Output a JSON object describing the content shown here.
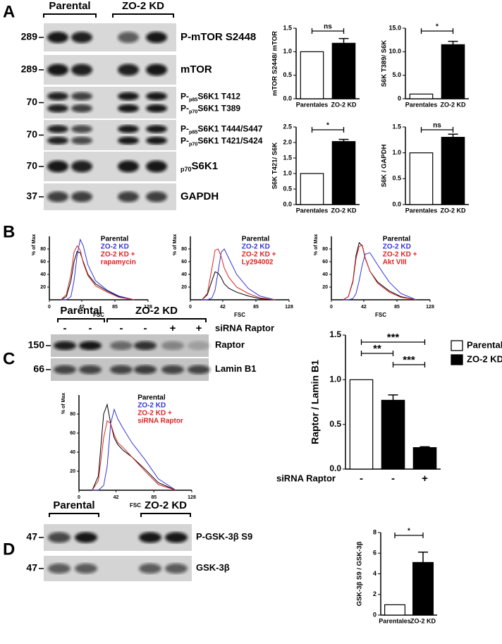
{
  "panels": {
    "a": {
      "letter": "A",
      "groups": [
        "Parental",
        "ZO-2 KD"
      ],
      "rows": [
        {
          "mw": "289",
          "lines": [
            [
              {
                "text": "P-mTOR S2448"
              }
            ]
          ]
        },
        {
          "mw": "289",
          "lines": [
            [
              {
                "text": "mTOR"
              }
            ]
          ]
        },
        {
          "mw": "70",
          "lines": [
            [
              {
                "text": "P-"
              },
              {
                "text": "p85",
                "sub": true
              },
              {
                "text": "S6K1 T412"
              }
            ],
            [
              {
                "text": "P-"
              },
              {
                "text": "p70",
                "sub": true
              },
              {
                "text": "S6K1 T389"
              }
            ]
          ]
        },
        {
          "mw": "70",
          "lines": [
            [
              {
                "text": "P-"
              },
              {
                "text": "p85",
                "sub": true
              },
              {
                "text": "S6K1 T444/S447"
              }
            ],
            [
              {
                "text": "P-"
              },
              {
                "text": "p70",
                "sub": true
              },
              {
                "text": "S6K1 T421/S424"
              }
            ]
          ]
        },
        {
          "mw": "70",
          "lines": [
            [
              {
                "text": "p70",
                "sub": true
              },
              {
                "text": "S6K1"
              }
            ]
          ]
        },
        {
          "mw": "37",
          "lines": [
            [
              {
                "text": "GAPDH"
              }
            ]
          ]
        }
      ]
    },
    "b": {
      "letter": "B"
    },
    "c": {
      "letter": "C",
      "groups": [
        "Parental",
        "ZO-2 KD"
      ],
      "treatment": "siRNA Raptor",
      "treatment_lanes": [
        "-",
        "-",
        "-",
        "-",
        "+",
        "+"
      ],
      "rows": [
        {
          "mw": "150",
          "lines": [
            [
              {
                "text": "Raptor"
              }
            ]
          ]
        },
        {
          "mw": "66",
          "lines": [
            [
              {
                "text": "Lamin B1"
              }
            ]
          ]
        }
      ]
    },
    "d": {
      "letter": "D",
      "groups": [
        "Parental",
        "ZO-2 KD"
      ],
      "rows": [
        {
          "mw": "47",
          "lines": [
            [
              {
                "text": "P-GSK-3β S9"
              }
            ]
          ]
        },
        {
          "mw": "47",
          "lines": [
            [
              {
                "text": "GSK-3β"
              }
            ]
          ]
        }
      ]
    }
  },
  "chart_data": [
    {
      "type": "bar",
      "y_label": "mTOR S2448/ mTOR",
      "categories": [
        "Parentales",
        "ZO-2 KD"
      ],
      "values": [
        1.0,
        1.18
      ],
      "errors": [
        null,
        0.1
      ],
      "colors": [
        "#ffffff",
        "#000000"
      ],
      "ylim": [
        0,
        1.5
      ],
      "yticks": [
        {
          "value": 0,
          "label": "0.0"
        },
        {
          "value": 0.5,
          "label": "0.5"
        },
        {
          "value": 1,
          "label": "1.0"
        },
        {
          "value": 1.5,
          "label": "1.5"
        }
      ],
      "comparisons": [
        {
          "between": [
            0,
            1
          ],
          "label": "ns"
        }
      ]
    },
    {
      "type": "bar",
      "y_label": "S6K T389/ S6K",
      "categories": [
        "Parentales",
        "ZO-2 KD"
      ],
      "values": [
        1.0,
        11.5
      ],
      "errors": [
        null,
        0.7
      ],
      "colors": [
        "#ffffff",
        "#000000"
      ],
      "ylim": [
        0,
        15
      ],
      "yticks": [
        0,
        {
          "value": 5,
          "label": "5.0"
        },
        {
          "value": 10,
          "label": "10.0"
        },
        {
          "value": 15,
          "label": "15.0"
        }
      ],
      "comparisons": [
        {
          "between": [
            0,
            1
          ],
          "label": "*"
        }
      ]
    },
    {
      "type": "bar",
      "y_label": "S6K T421/ S6K",
      "categories": [
        "Parentales",
        "ZO-2 KD"
      ],
      "values": [
        1.0,
        2.03
      ],
      "errors": [
        null,
        0.07
      ],
      "colors": [
        "#ffffff",
        "#000000"
      ],
      "ylim": [
        0,
        2.5
      ],
      "yticks": [
        {
          "value": 0,
          "label": "0.0"
        },
        {
          "value": 0.5,
          "label": "0.5"
        },
        {
          "value": 1,
          "label": "1.0"
        },
        {
          "value": 1.5,
          "label": "1.5"
        },
        {
          "value": 2,
          "label": "2.0"
        },
        {
          "value": 2.5,
          "label": "2.5"
        }
      ],
      "comparisons": [
        {
          "between": [
            0,
            1
          ],
          "label": "*"
        }
      ]
    },
    {
      "type": "bar",
      "y_label": "S6K / GAPDH",
      "categories": [
        "Parentales",
        "ZO-2 KD"
      ],
      "values": [
        1.0,
        1.3
      ],
      "errors": [
        null,
        0.06
      ],
      "colors": [
        "#ffffff",
        "#000000"
      ],
      "ylim": [
        0,
        1.5
      ],
      "yticks": [
        {
          "value": 0,
          "label": "0.0"
        },
        {
          "value": 0.5,
          "label": "0.5"
        },
        {
          "value": 1,
          "label": "1.0"
        },
        {
          "value": 1.5,
          "label": "1.5"
        }
      ],
      "comparisons": [
        {
          "between": [
            0,
            1
          ],
          "label": "ns"
        }
      ]
    },
    {
      "type": "line",
      "y_label": "% of Max",
      "x_label": "FSC",
      "xlim": [
        0,
        128
      ],
      "xticks": [
        0,
        42,
        85,
        128
      ],
      "ylim": [
        0,
        100
      ],
      "yticks": [
        20,
        40,
        60,
        80
      ],
      "x": [
        15,
        22,
        28,
        32,
        36,
        40,
        44,
        50,
        60,
        75,
        90,
        110
      ],
      "series": [
        {
          "name": [
            "Parental"
          ],
          "color": "#000000",
          "values": [
            0,
            5,
            30,
            60,
            76,
            74,
            60,
            40,
            25,
            14,
            5,
            0
          ]
        },
        {
          "name": [
            "ZO-2 KD"
          ],
          "color": "#3333dd",
          "values": [
            0,
            0,
            5,
            30,
            70,
            95,
            85,
            55,
            30,
            15,
            6,
            0
          ]
        },
        {
          "name": [
            "ZO-2 KD +",
            "rapamycin"
          ],
          "color": "#dd2222",
          "values": [
            0,
            8,
            40,
            75,
            85,
            78,
            58,
            38,
            22,
            12,
            4,
            0
          ]
        }
      ]
    },
    {
      "type": "line",
      "y_label": "% of Max",
      "x_label": "FSC",
      "xlim": [
        0,
        128
      ],
      "xticks": [
        0,
        42,
        85,
        128
      ],
      "ylim": [
        0,
        100
      ],
      "yticks": [
        20,
        40,
        60,
        80
      ],
      "x": [
        15,
        22,
        28,
        32,
        36,
        40,
        44,
        50,
        60,
        75,
        90,
        110
      ],
      "series": [
        {
          "name": [
            "Parental"
          ],
          "color": "#000000",
          "values": [
            0,
            8,
            30,
            44,
            42,
            35,
            25,
            18,
            12,
            6,
            2,
            0
          ]
        },
        {
          "name": [
            "ZO-2 KD"
          ],
          "color": "#3333dd",
          "values": [
            0,
            0,
            3,
            15,
            45,
            75,
            80,
            65,
            40,
            18,
            6,
            0
          ]
        },
        {
          "name": [
            "ZO-2 KD +",
            "Ly294002"
          ],
          "color": "#dd2222",
          "values": [
            0,
            10,
            50,
            78,
            80,
            68,
            50,
            35,
            20,
            10,
            3,
            0
          ]
        }
      ]
    },
    {
      "type": "line",
      "y_label": "% of Max",
      "x_label": "FSC",
      "xlim": [
        0,
        128
      ],
      "xticks": [
        0,
        42,
        85,
        128
      ],
      "ylim": [
        0,
        100
      ],
      "yticks": [
        20,
        40,
        60,
        80
      ],
      "x": [
        15,
        22,
        28,
        32,
        36,
        40,
        44,
        50,
        60,
        75,
        90,
        110
      ],
      "series": [
        {
          "name": [
            "Parental"
          ],
          "color": "#000000",
          "values": [
            0,
            5,
            30,
            70,
            90,
            85,
            65,
            45,
            28,
            14,
            5,
            0
          ]
        },
        {
          "name": [
            "ZO-2 KD"
          ],
          "color": "#3333dd",
          "values": [
            0,
            0,
            2,
            10,
            30,
            55,
            72,
            74,
            55,
            28,
            10,
            0
          ]
        },
        {
          "name": [
            "ZO-2 KD +",
            "Akt VIII"
          ],
          "color": "#dd2222",
          "values": [
            0,
            5,
            28,
            65,
            84,
            86,
            66,
            45,
            26,
            12,
            4,
            0
          ]
        }
      ]
    },
    {
      "type": "line",
      "y_label": "% of Max",
      "x_label": "FSC",
      "xlim": [
        0,
        128
      ],
      "xticks": [
        0,
        42,
        85,
        128
      ],
      "ylim": [
        0,
        100
      ],
      "yticks": [
        20,
        40,
        60,
        80
      ],
      "x": [
        15,
        22,
        28,
        32,
        36,
        40,
        44,
        50,
        60,
        75,
        90,
        110
      ],
      "series": [
        {
          "name": [
            "Parental"
          ],
          "color": "#000000",
          "values": [
            0,
            15,
            80,
            90,
            70,
            55,
            48,
            42,
            35,
            22,
            8,
            0
          ]
        },
        {
          "name": [
            "ZO-2 KD"
          ],
          "color": "#3333dd",
          "values": [
            0,
            0,
            5,
            25,
            70,
            85,
            75,
            65,
            50,
            32,
            12,
            0
          ]
        },
        {
          "name": [
            "ZO-2 KD +",
            "siRNA Raptor"
          ],
          "color": "#dd2222",
          "values": [
            0,
            10,
            55,
            73,
            70,
            58,
            50,
            45,
            35,
            20,
            6,
            0
          ]
        }
      ]
    },
    {
      "type": "bar",
      "y_label": "Raptor / Lamin B1",
      "x_label": "siRNA Raptor",
      "categories": [
        "-",
        "-",
        "+"
      ],
      "values": [
        1.0,
        0.77,
        0.24
      ],
      "errors": [
        null,
        0.06,
        0.01
      ],
      "colors": [
        "#ffffff",
        "#000000",
        "#000000"
      ],
      "ylim": [
        0,
        1.5
      ],
      "yticks": [
        {
          "value": 0,
          "label": "0.0"
        },
        {
          "value": 0.5,
          "label": "0.5"
        },
        {
          "value": 1,
          "label": "1.0"
        },
        {
          "value": 1.5,
          "label": "1.5"
        }
      ],
      "comparisons": [
        {
          "between": [
            0,
            2
          ],
          "label": "***"
        },
        {
          "between": [
            0,
            1
          ],
          "label": "**"
        },
        {
          "between": [
            1,
            2
          ],
          "label": "***"
        }
      ],
      "legend": [
        {
          "name": "Parental",
          "color": "#ffffff"
        },
        {
          "name": "ZO-2 KD",
          "color": "#000000"
        }
      ]
    },
    {
      "type": "bar",
      "y_label": "GSK-3β S9 / GSK-3β",
      "categories": [
        "Parentales",
        "ZO-2 KD"
      ],
      "values": [
        1.0,
        5.1
      ],
      "errors": [
        null,
        1.0
      ],
      "colors": [
        "#ffffff",
        "#000000"
      ],
      "ylim": [
        0,
        8
      ],
      "yticks": [
        0,
        2,
        4,
        6,
        8
      ],
      "comparisons": [
        {
          "between": [
            0,
            1
          ],
          "label": "*"
        }
      ]
    }
  ]
}
